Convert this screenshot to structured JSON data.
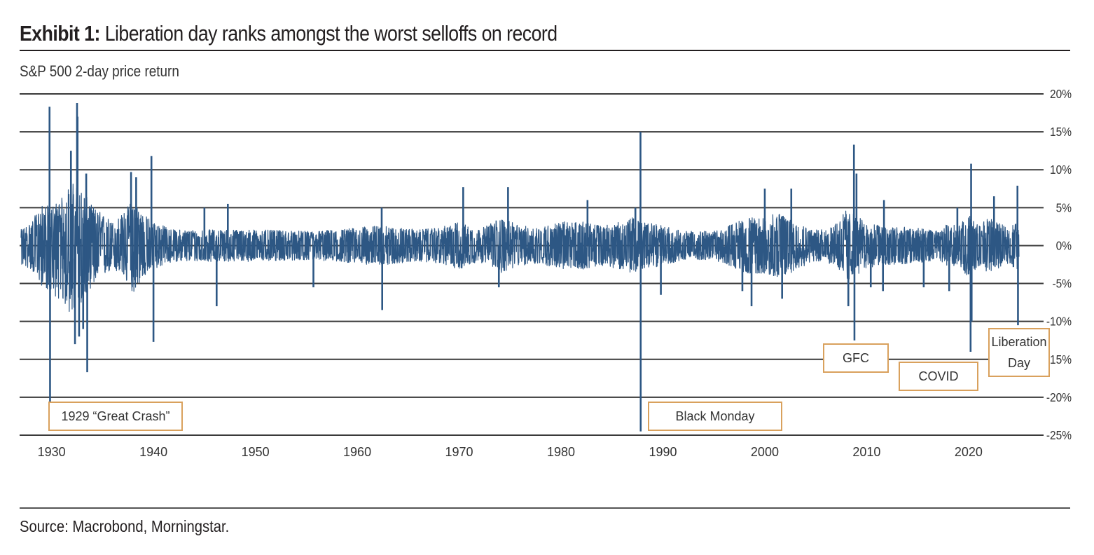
{
  "title": {
    "lead": "Exhibit 1:",
    "text": "Liberation day ranks amongst the worst selloffs on record"
  },
  "subtitle": "S&P 500 2-day price return",
  "source": "Source: Macrobond, Morningstar.",
  "colors": {
    "series": "#2d5784",
    "gridline": "#3a3a3a",
    "annotation_border": "#d9a15d"
  },
  "chart_data": {
    "type": "line",
    "title": "Exhibit 1: Liberation day ranks amongst the worst selloffs on record",
    "subtitle": "S&P 500 2-day price return",
    "xlabel": "",
    "ylabel": "",
    "xlim": [
      1927,
      2025.3
    ],
    "ylim": [
      -25,
      20
    ],
    "x_ticks": [
      1930,
      1940,
      1950,
      1960,
      1970,
      1980,
      1990,
      2000,
      2010,
      2020
    ],
    "x_tick_labels": [
      "1930",
      "1940",
      "1950",
      "1960",
      "1970",
      "1980",
      "1990",
      "2000",
      "2010",
      "2020"
    ],
    "y_ticks": [
      20,
      15,
      10,
      5,
      0,
      -5,
      -10,
      -15,
      -20,
      -25
    ],
    "y_tick_labels": [
      "20%",
      "15%",
      "10%",
      "5%",
      "0%",
      "-5%",
      "-10%",
      "-15%",
      "-20%",
      "-25%"
    ],
    "y_axis_side": "right",
    "grid": true,
    "legend": "none",
    "series": [
      {
        "envelope": {
          "x": [
            1927,
            1928,
            1929,
            1930,
            1931,
            1932,
            1933,
            1934,
            1935,
            1936,
            1937,
            1938,
            1939,
            1940,
            1941,
            1942,
            1945,
            1948,
            1950,
            1955,
            1958,
            1962,
            1966,
            1968,
            1970,
            1972,
            1974,
            1975,
            1976,
            1978,
            1980,
            1982,
            1984,
            1986,
            1987,
            1988,
            1990,
            1992,
            1995,
            1997,
            1998,
            2000,
            2001,
            2002,
            2003,
            2005,
            2006,
            2007,
            2008,
            2009,
            2010,
            2012,
            2015,
            2017,
            2018,
            2019,
            2020,
            2021,
            2022,
            2023,
            2024,
            2025
          ],
          "upper": [
            2,
            3,
            5,
            5,
            6,
            8,
            7,
            5,
            4,
            3,
            4,
            6,
            4,
            3,
            2.5,
            2,
            2,
            2,
            2,
            1.8,
            2,
            2.5,
            2,
            2.2,
            3,
            2,
            3.5,
            3,
            2.5,
            2.3,
            3,
            3,
            2.5,
            3,
            3.5,
            3,
            2.5,
            1.8,
            1.8,
            2.8,
            3.5,
            3.5,
            4,
            4,
            3,
            2,
            2,
            2.8,
            4.5,
            3.8,
            2.8,
            2.5,
            2.2,
            1.8,
            2.8,
            2.5,
            4,
            2.5,
            3.5,
            2.8,
            2.2,
            3.5
          ],
          "lower": [
            -2.5,
            -3,
            -5,
            -6,
            -7,
            -9,
            -7,
            -5,
            -4,
            -3,
            -4,
            -6,
            -4,
            -3,
            -2.5,
            -2,
            -2,
            -2,
            -2,
            -1.8,
            -2,
            -2.5,
            -2,
            -2.2,
            -3,
            -2,
            -3.5,
            -3,
            -2.5,
            -2.3,
            -3,
            -3,
            -2.5,
            -3,
            -3.5,
            -3,
            -2.5,
            -1.8,
            -1.8,
            -2.8,
            -3.5,
            -3.5,
            -4,
            -4,
            -3,
            -2,
            -2,
            -2.8,
            -4.5,
            -3.8,
            -2.8,
            -2.5,
            -2.2,
            -1.8,
            -2.8,
            -2.5,
            -4,
            -2.5,
            -3.5,
            -2.8,
            -2.2,
            -3.5
          ]
        },
        "spikes": [
          {
            "x": 1929.8,
            "y": 18.3
          },
          {
            "x": 1929.85,
            "y": -22
          },
          {
            "x": 1931.9,
            "y": 12.5
          },
          {
            "x": 1932.3,
            "y": -13
          },
          {
            "x": 1932.5,
            "y": 18.8
          },
          {
            "x": 1932.55,
            "y": 17
          },
          {
            "x": 1932.7,
            "y": -12
          },
          {
            "x": 1933.1,
            "y": -11
          },
          {
            "x": 1933.4,
            "y": 9.5
          },
          {
            "x": 1933.5,
            "y": -16.7
          },
          {
            "x": 1937.8,
            "y": 9.7
          },
          {
            "x": 1938.3,
            "y": 9
          },
          {
            "x": 1939.8,
            "y": 11.8
          },
          {
            "x": 1940.0,
            "y": -12.7
          },
          {
            "x": 1945.0,
            "y": 5
          },
          {
            "x": 1946.2,
            "y": -8
          },
          {
            "x": 1947.3,
            "y": 5.5
          },
          {
            "x": 1955.7,
            "y": -5.5
          },
          {
            "x": 1962.4,
            "y": 5
          },
          {
            "x": 1962.45,
            "y": -8.5
          },
          {
            "x": 1970.4,
            "y": 7.7
          },
          {
            "x": 1973.9,
            "y": -5.5
          },
          {
            "x": 1974.8,
            "y": 7.7
          },
          {
            "x": 1982.6,
            "y": 6
          },
          {
            "x": 1987.3,
            "y": 5
          },
          {
            "x": 1987.8,
            "y": 15
          },
          {
            "x": 1987.82,
            "y": -24.5
          },
          {
            "x": 1989.8,
            "y": -6.5
          },
          {
            "x": 1997.8,
            "y": -6
          },
          {
            "x": 1998.7,
            "y": -8
          },
          {
            "x": 2000.0,
            "y": 7.5
          },
          {
            "x": 2001.7,
            "y": -7
          },
          {
            "x": 2002.6,
            "y": 7.5
          },
          {
            "x": 2008.2,
            "y": -8
          },
          {
            "x": 2008.75,
            "y": 13.3
          },
          {
            "x": 2008.8,
            "y": -12.5
          },
          {
            "x": 2009.0,
            "y": 9.5
          },
          {
            "x": 2010.4,
            "y": -5.5
          },
          {
            "x": 2011.6,
            "y": -6
          },
          {
            "x": 2011.7,
            "y": 6
          },
          {
            "x": 2015.6,
            "y": -5.5
          },
          {
            "x": 2018.1,
            "y": -6
          },
          {
            "x": 2018.9,
            "y": 5
          },
          {
            "x": 2020.2,
            "y": -14
          },
          {
            "x": 2020.25,
            "y": 10.8
          },
          {
            "x": 2020.3,
            "y": -10
          },
          {
            "x": 2022.5,
            "y": 6.5
          },
          {
            "x": 2024.8,
            "y": 7.9
          },
          {
            "x": 2024.85,
            "y": -10.5
          }
        ]
      }
    ],
    "annotations": [
      {
        "label": "1929 “Great Crash”",
        "x": 1929.8,
        "y": -22
      },
      {
        "label": "Black Monday",
        "x": 1987.8,
        "y": -24.5
      },
      {
        "label": "GFC",
        "x": 2008.8,
        "y": -12.5
      },
      {
        "label": "COVID",
        "x": 2020.2,
        "y": -14
      },
      {
        "label": "Liberation Day",
        "x": 2024.85,
        "y": -10.5
      }
    ]
  }
}
